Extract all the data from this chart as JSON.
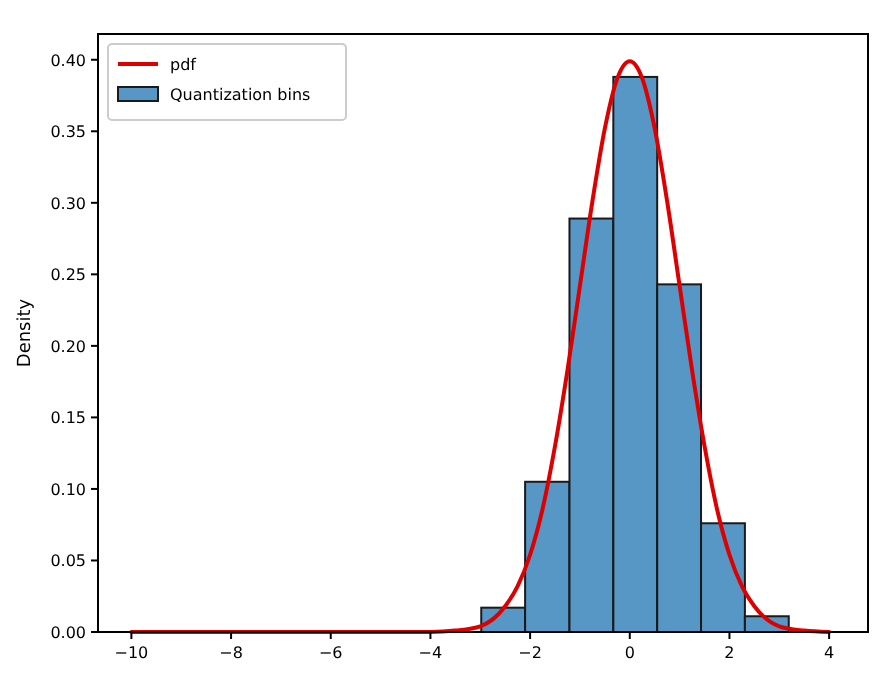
{
  "chart_data": {
    "type": "histogram",
    "ylabel": "Density",
    "bins": [
      -2.98,
      -2.1,
      -1.21,
      -0.33,
      0.55,
      1.43,
      2.31,
      3.19
    ],
    "series": [
      {
        "name": "Quantization bins",
        "color": "#5697c6",
        "values": [
          0.017,
          0.105,
          0.289,
          0.388,
          0.243,
          0.076,
          0.011
        ]
      },
      {
        "name": "pdf",
        "type": "line",
        "color": "#dd0000",
        "x": [
          -10,
          -8,
          -6,
          -5,
          -4,
          -3.5,
          -3,
          -2.5,
          -2.25,
          -2,
          -1.75,
          -1.5,
          -1.25,
          -1,
          -0.75,
          -0.5,
          -0.25,
          0,
          0.25,
          0.5,
          0.75,
          1,
          1.25,
          1.5,
          1.75,
          2,
          2.25,
          2.5,
          3,
          3.5,
          4
        ],
        "values": [
          0,
          0,
          0,
          0,
          0,
          0.001,
          0.004,
          0.018,
          0.032,
          0.054,
          0.086,
          0.13,
          0.183,
          0.242,
          0.301,
          0.352,
          0.387,
          0.399,
          0.387,
          0.352,
          0.301,
          0.242,
          0.183,
          0.13,
          0.086,
          0.054,
          0.032,
          0.018,
          0.004,
          0.001,
          0
        ]
      }
    ],
    "xlim": [
      -10.67,
      4.78
    ],
    "xticks": [
      {
        "value": -10,
        "label": "−10"
      },
      {
        "value": -8,
        "label": "−8"
      },
      {
        "value": -6,
        "label": "−6"
      },
      {
        "value": -4,
        "label": "−4"
      },
      {
        "value": -2,
        "label": "−2"
      },
      0,
      2,
      4
    ],
    "ylim": [
      0,
      0.418
    ],
    "yticks": [
      {
        "value": 0,
        "label": "0.00"
      },
      {
        "value": 0.05,
        "label": "0.05"
      },
      {
        "value": 0.1,
        "label": "0.10"
      },
      {
        "value": 0.15,
        "label": "0.15"
      },
      {
        "value": 0.2,
        "label": "0.20"
      },
      {
        "value": 0.25,
        "label": "0.25"
      },
      {
        "value": 0.3,
        "label": "0.30"
      },
      {
        "value": 0.35,
        "label": "0.35"
      },
      {
        "value": 0.4,
        "label": "0.40"
      }
    ],
    "legend": "top left",
    "grid": false
  }
}
